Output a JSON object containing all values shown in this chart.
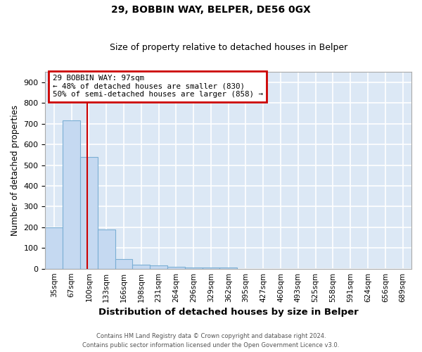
{
  "title1": "29, BOBBIN WAY, BELPER, DE56 0GX",
  "title2": "Size of property relative to detached houses in Belper",
  "xlabel": "Distribution of detached houses by size in Belper",
  "ylabel": "Number of detached properties",
  "bar_labels": [
    "35sqm",
    "67sqm",
    "100sqm",
    "133sqm",
    "166sqm",
    "198sqm",
    "231sqm",
    "264sqm",
    "296sqm",
    "329sqm",
    "362sqm",
    "395sqm",
    "427sqm",
    "460sqm",
    "493sqm",
    "525sqm",
    "558sqm",
    "591sqm",
    "624sqm",
    "656sqm",
    "689sqm"
  ],
  "bar_values": [
    200,
    715,
    540,
    190,
    45,
    20,
    15,
    10,
    5,
    5,
    5,
    0,
    0,
    0,
    0,
    0,
    0,
    0,
    0,
    0,
    0
  ],
  "bar_color": "#c5d9f1",
  "bar_edge_color": "#7bafd4",
  "bg_color": "#dce8f5",
  "grid_color": "#ffffff",
  "annotation_line1": "29 BOBBIN WAY: 97sqm",
  "annotation_line2": "← 48% of detached houses are smaller (830)",
  "annotation_line3": "50% of semi-detached houses are larger (858) →",
  "annotation_box_color": "#ffffff",
  "annotation_box_edge": "#cc0000",
  "ylim": [
    0,
    950
  ],
  "yticks": [
    0,
    100,
    200,
    300,
    400,
    500,
    600,
    700,
    800,
    900
  ],
  "footnote1": "Contains HM Land Registry data © Crown copyright and database right 2024.",
  "footnote2": "Contains public sector information licensed under the Open Government Licence v3.0."
}
